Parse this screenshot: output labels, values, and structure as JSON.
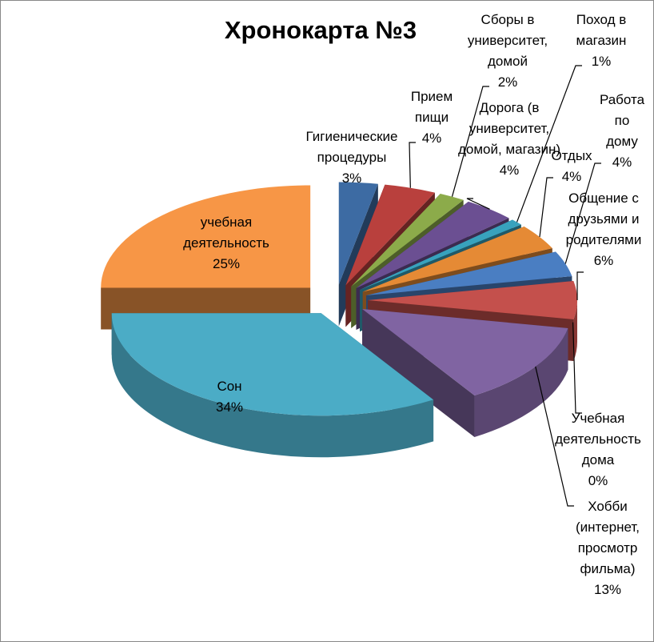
{
  "chart_data": {
    "type": "pie",
    "title": "Хронокарта №3",
    "categories": [
      "Гигиенические процедуры",
      "Прием пищи",
      "Сборы в университет, домой",
      "Дорога (в университет, домой, магазин)",
      "Поход в магазин",
      "Отдых",
      "Работа по дому",
      "Общение с друзьями и родителями",
      "Учебная деятельность дома",
      "Хобби (интернет, просмотр фильма)",
      "Сон",
      "учебная деятельность"
    ],
    "values": [
      3,
      4,
      2,
      4,
      1,
      4,
      4,
      6,
      0,
      13,
      34,
      25
    ],
    "value_labels": [
      "3%",
      "4%",
      "2%",
      "4%",
      "1%",
      "4%",
      "4%",
      "6%",
      "0%",
      "13%",
      "34%",
      "25%"
    ],
    "colors": [
      "#3d6ba3",
      "#b9403d",
      "#8cab4a",
      "#6b4f92",
      "#38a2bd",
      "#e58a35",
      "#4a7ec2",
      "#c4504c",
      "#9bbb59",
      "#8064a2",
      "#4bacc6",
      "#f79646"
    ]
  }
}
